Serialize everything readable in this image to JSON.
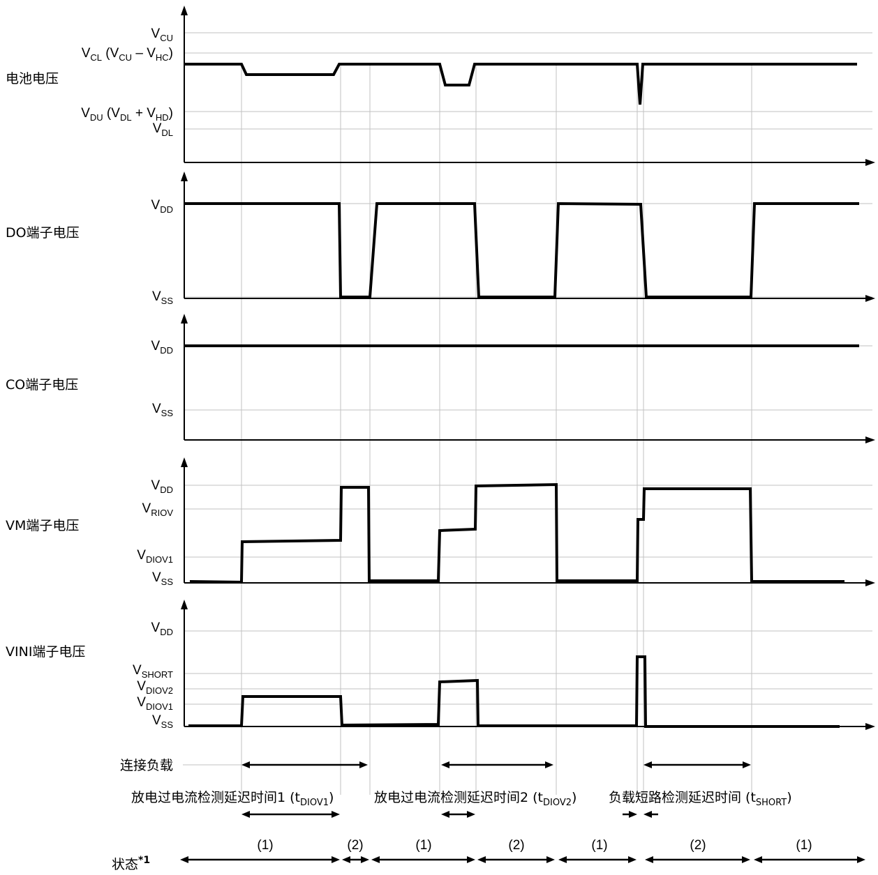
{
  "panels": {
    "battery": {
      "title": "电池电压",
      "levels": {
        "vcu": [
          "V",
          "CU",
          ""
        ],
        "vcl": [
          "V",
          "CL",
          " (V",
          "CU",
          " – V",
          "HC",
          ")"
        ],
        "vdu": [
          "V",
          "DU",
          " (V",
          "DL",
          " + V",
          "HD",
          ")"
        ],
        "vdl": [
          "V",
          "DL",
          ""
        ]
      }
    },
    "do": {
      "title": "DO端子电压",
      "levels": {
        "vdd": [
          "V",
          "DD",
          ""
        ],
        "vss": [
          "V",
          "SS",
          ""
        ]
      }
    },
    "co": {
      "title": "CO端子电压",
      "levels": {
        "vdd": [
          "V",
          "DD",
          ""
        ],
        "vss": [
          "V",
          "SS",
          ""
        ]
      }
    },
    "vm": {
      "title": "VM端子电压",
      "levels": {
        "vdd": [
          "V",
          "DD",
          ""
        ],
        "vriov": [
          "V",
          "RIOV",
          ""
        ],
        "vdiov1": [
          "V",
          "DIOV1",
          ""
        ],
        "vss": [
          "V",
          "SS",
          ""
        ]
      }
    },
    "vini": {
      "title": "VINI端子电压",
      "levels": {
        "vdd": [
          "V",
          "DD",
          ""
        ],
        "vshort": [
          "V",
          "SHORT",
          ""
        ],
        "vdiov2": [
          "V",
          "DIOV2",
          ""
        ],
        "vdiov1": [
          "V",
          "DIOV1",
          ""
        ],
        "vss": [
          "V",
          "SS",
          ""
        ]
      }
    }
  },
  "load": {
    "label": "连接负载"
  },
  "delays": {
    "d1": [
      "放电过电流检测延迟时间1 (t",
      "DIOV1",
      ")"
    ],
    "d2": [
      "放电过电流检测延迟时间2 (t",
      "DIOV2",
      ")"
    ],
    "d3": [
      "负载短路检测延迟时间 (t",
      "SHORT",
      ")"
    ]
  },
  "states": {
    "label": "状态",
    "footnote": "*1",
    "items": [
      "(1)",
      "(2)",
      "(1)",
      "(2)",
      "(1)",
      "(2)",
      "(1)"
    ]
  }
}
